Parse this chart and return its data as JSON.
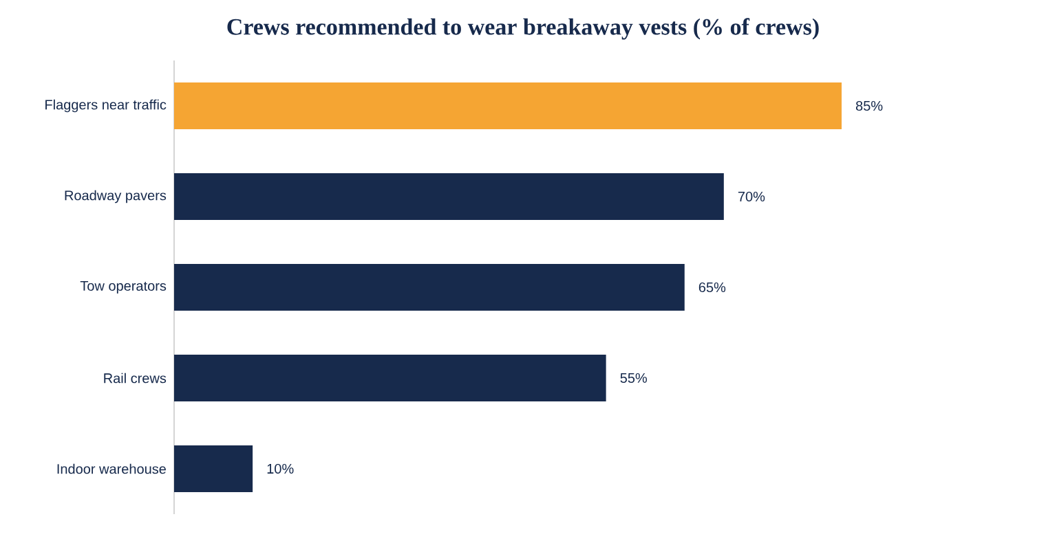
{
  "chart_data": {
    "type": "bar",
    "orientation": "horizontal",
    "title": "Crews recommended to wear breakaway vests (% of crews)",
    "categories": [
      "Flaggers near traffic",
      "Roadway pavers",
      "Tow operators",
      "Rail crews",
      "Indoor warehouse"
    ],
    "values": [
      85,
      70,
      65,
      55,
      10
    ],
    "colors": [
      "#f5a533",
      "#172a4c",
      "#172a4c",
      "#172a4c",
      "#172a4c"
    ],
    "value_labels": [
      "85%",
      "70%",
      "65%",
      "55%",
      "10%"
    ]
  }
}
